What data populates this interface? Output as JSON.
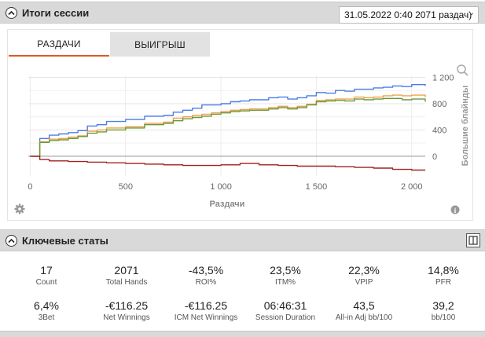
{
  "session": {
    "title": "Итоги сессии",
    "selected": "31.05.2022 0:40 2071 раздач)"
  },
  "tabs": [
    {
      "label": "РАЗДАЧИ",
      "active": true
    },
    {
      "label": "ВЫИГРЫШ",
      "active": false
    }
  ],
  "chart_data": {
    "type": "line",
    "xlabel": "Раздачи",
    "ylabel": "Большие блайнды",
    "x_ticks": [
      "0",
      "500",
      "1 000",
      "1 500",
      "2 000"
    ],
    "x_tick_values": [
      0,
      500,
      1000,
      1500,
      2000
    ],
    "y_ticks": [
      "0",
      "400",
      "800",
      "1 200"
    ],
    "y_tick_values": [
      0,
      400,
      800,
      1200
    ],
    "xlim": [
      -10,
      2071
    ],
    "ylim": [
      -300,
      1230
    ],
    "grid": true,
    "y_axis_side": "right",
    "series": [
      {
        "color": "#4a7de8",
        "x": [
          0,
          50,
          100,
          150,
          200,
          250,
          300,
          350,
          400,
          500,
          600,
          700,
          750,
          800,
          850,
          900,
          950,
          1000,
          1050,
          1100,
          1150,
          1200,
          1250,
          1300,
          1350,
          1400,
          1450,
          1500,
          1550,
          1600,
          1650,
          1700,
          1750,
          1800,
          1850,
          1900,
          1950,
          2000,
          2071
        ],
        "y": [
          0,
          270,
          320,
          340,
          360,
          390,
          460,
          480,
          530,
          560,
          610,
          620,
          670,
          700,
          730,
          780,
          780,
          800,
          830,
          840,
          860,
          860,
          890,
          900,
          870,
          890,
          920,
          970,
          960,
          1000,
          990,
          1020,
          1020,
          1040,
          1050,
          1070,
          1060,
          1090,
          1070
        ]
      },
      {
        "color": "#f0a050",
        "x": [
          0,
          50,
          100,
          150,
          200,
          250,
          300,
          350,
          400,
          500,
          600,
          700,
          750,
          800,
          850,
          900,
          950,
          1000,
          1050,
          1100,
          1150,
          1200,
          1250,
          1300,
          1350,
          1400,
          1450,
          1500,
          1550,
          1600,
          1650,
          1700,
          1750,
          1800,
          1850,
          1900,
          1950,
          2000,
          2071
        ],
        "y": [
          0,
          220,
          260,
          270,
          290,
          310,
          380,
          400,
          430,
          450,
          500,
          520,
          580,
          600,
          620,
          640,
          660,
          680,
          700,
          710,
          720,
          720,
          740,
          760,
          740,
          760,
          790,
          850,
          860,
          870,
          870,
          900,
          890,
          900,
          920,
          930,
          920,
          930,
          900
        ]
      },
      {
        "color": "#6a9a38",
        "x": [
          0,
          50,
          100,
          150,
          200,
          250,
          300,
          350,
          400,
          500,
          600,
          700,
          750,
          800,
          850,
          900,
          950,
          1000,
          1050,
          1100,
          1150,
          1200,
          1250,
          1300,
          1350,
          1400,
          1450,
          1500,
          1550,
          1600,
          1650,
          1700,
          1750,
          1800,
          1850,
          1900,
          1950,
          2000,
          2071
        ],
        "y": [
          0,
          210,
          240,
          250,
          270,
          300,
          350,
          370,
          400,
          430,
          480,
          500,
          540,
          570,
          590,
          610,
          640,
          660,
          680,
          690,
          700,
          700,
          720,
          740,
          720,
          740,
          780,
          830,
          840,
          850,
          840,
          870,
          860,
          870,
          880,
          880,
          860,
          870,
          830
        ]
      },
      {
        "color": "#a02020",
        "x": [
          0,
          50,
          100,
          200,
          300,
          400,
          500,
          600,
          700,
          800,
          900,
          1000,
          1100,
          1200,
          1300,
          1400,
          1500,
          1600,
          1700,
          1800,
          1900,
          2000,
          2071
        ],
        "y": [
          0,
          -50,
          -70,
          -80,
          -90,
          -100,
          -110,
          -120,
          -130,
          -140,
          -140,
          -130,
          -110,
          -130,
          -140,
          -150,
          -150,
          -160,
          -170,
          -180,
          -200,
          -210,
          -210
        ]
      }
    ]
  },
  "key_stats": {
    "title": "Ключевые статы",
    "row1": [
      {
        "value": "17",
        "label": "Count"
      },
      {
        "value": "2071",
        "label": "Total Hands"
      },
      {
        "value": "-43,5%",
        "label": "ROI%"
      },
      {
        "value": "23,5%",
        "label": "ITM%"
      },
      {
        "value": "22,3%",
        "label": "VPIP"
      },
      {
        "value": "14,8%",
        "label": "PFR"
      }
    ],
    "row2": [
      {
        "value": "6,4%",
        "label": "3Bet"
      },
      {
        "value": "-€116.25",
        "label": "Net Winnings"
      },
      {
        "value": "-€116.25",
        "label": "ICM Net Winnings"
      },
      {
        "value": "06:46:31",
        "label": "Session Duration"
      },
      {
        "value": "43,5",
        "label": "All-in Adj bb/100"
      },
      {
        "value": "39,2",
        "label": "bb/100"
      }
    ]
  },
  "icons": {
    "collapse": "chevron-up-icon",
    "zoom": "zoom-icon",
    "settings": "gear-icon",
    "info": "info-icon",
    "expand": "panel-icon"
  }
}
